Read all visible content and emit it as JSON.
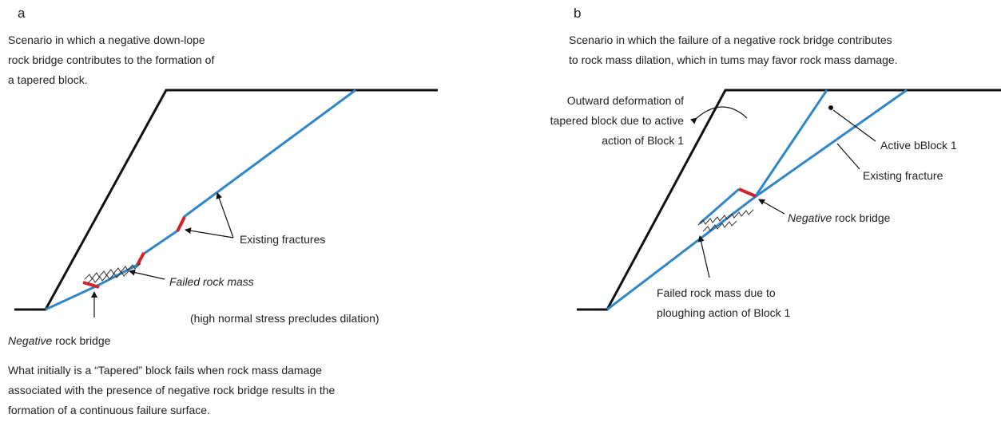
{
  "panel_a": {
    "label": "a",
    "description": [
      "Scenario in which a negative down-lope",
      "rock bridge contributes to the formation of",
      "a tapered block."
    ],
    "existing_fractures": "Existing fractures",
    "failed_rock_mass": "Failed rock mass",
    "stress_note": "(high normal stress precludes dilation)",
    "bridge_italic": "Negative",
    "bridge_rest": "rock bridge",
    "caption": [
      "What initially is a “Tapered” block fails when rock mass damage",
      "associated with the presence of negative rock bridge results in the",
      "formation of a continuous failure surface."
    ]
  },
  "panel_b": {
    "label": "b",
    "description": [
      "Scenario in which the failure of a negative rock bridge contributes",
      "to rock mass dilation, which in tums may favor rock mass damage."
    ],
    "outward": [
      "Outward deformation of",
      "tapered block due to active",
      "action of Block 1"
    ],
    "active_block": "Active bBlock 1",
    "existing_fracture": "Existing fracture",
    "bridge_italic": "Negative",
    "bridge_rest": "rock bridge",
    "failed": [
      "Failed rock mass due to",
      "ploughing action of Block 1"
    ]
  }
}
